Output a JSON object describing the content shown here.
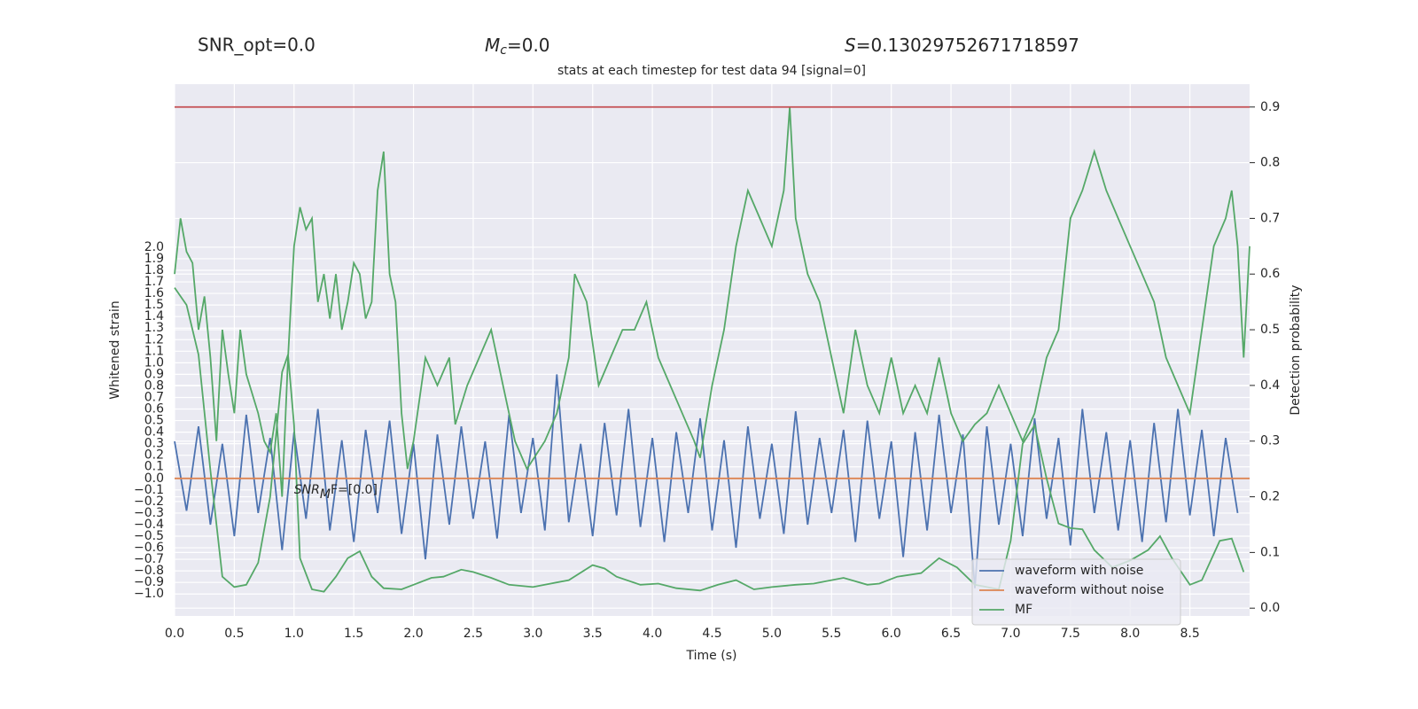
{
  "chart_data": {
    "type": "line",
    "title": "stats at each timestep for test data 94 [signal=0]",
    "snr_opt_label": "SNR_opt=0.0",
    "mc_label": {
      "symbol": "M",
      "sub": "c",
      "rest": "=0.0"
    },
    "s_label": {
      "symbol": "S",
      "rest": "=0.13029752671718597"
    },
    "annotation": {
      "symbol": "SNR",
      "sub": "M",
      "rest": "F=[0.0]",
      "x": 1.0,
      "y": -0.1
    },
    "xlabel": "Time (s)",
    "ylabel": "Whitened strain",
    "y2label": "Detection probability",
    "xlim": [
      0,
      9.0
    ],
    "ylim": [
      -1.19,
      3.41
    ],
    "y2lim": [
      -0.014,
      0.941
    ],
    "xticks": [
      {
        "value": 0,
        "label": "0.0"
      },
      0.5,
      {
        "value": 1,
        "label": "1.0"
      },
      1.5,
      {
        "value": 2,
        "label": "2.0"
      },
      2.5,
      {
        "value": 3,
        "label": "3.0"
      },
      3.5,
      {
        "value": 4,
        "label": "4.0"
      },
      4.5,
      {
        "value": 5,
        "label": "5.0"
      },
      5.5,
      {
        "value": 6,
        "label": "6.0"
      },
      6.5,
      {
        "value": 7,
        "label": "7.0"
      },
      7.5,
      {
        "value": 8,
        "label": "8.0"
      },
      8.5
    ],
    "yticks": [
      {
        "value": -1.0,
        "label": "−1.0"
      },
      {
        "value": -0.9,
        "label": "−0.9"
      },
      {
        "value": -0.8,
        "label": "−0.8"
      },
      {
        "value": -0.7,
        "label": "−0.7"
      },
      {
        "value": -0.6,
        "label": "−0.6"
      },
      {
        "value": -0.5,
        "label": "−0.5"
      },
      {
        "value": -0.4,
        "label": "−0.4"
      },
      {
        "value": -0.3,
        "label": "−0.3"
      },
      {
        "value": -0.2,
        "label": "−0.2"
      },
      {
        "value": -0.1,
        "label": "−0.1"
      },
      {
        "value": 0,
        "label": "0.0"
      },
      0.1,
      0.2,
      0.3,
      0.4,
      0.5,
      0.6,
      0.7,
      0.8,
      0.9,
      {
        "value": 1,
        "label": "1.0"
      },
      1.1,
      1.2,
      1.3,
      1.4,
      1.5,
      1.6,
      1.7,
      1.8,
      1.9,
      {
        "value": 2,
        "label": "2.0"
      }
    ],
    "y2ticks": [
      {
        "value": 0,
        "label": "0.0"
      },
      0.1,
      0.2,
      0.3,
      0.4,
      0.5,
      0.6,
      0.7,
      0.8,
      0.9
    ],
    "grid": true,
    "legend": "lower right",
    "hlines": [
      {
        "value": 0.9,
        "axis": "y2",
        "color": "#c44e52"
      }
    ],
    "series": [
      {
        "name": "waveform with noise",
        "color": "#4c72b0",
        "x": [
          0,
          0.1,
          0.2,
          0.3,
          0.4,
          0.5,
          0.6,
          0.7,
          0.8,
          0.9,
          1,
          1.1,
          1.2,
          1.3,
          1.4,
          1.5,
          1.6,
          1.7,
          1.8,
          1.9,
          2,
          2.1,
          2.2,
          2.3,
          2.4,
          2.5,
          2.6,
          2.7,
          2.8,
          2.9,
          3,
          3.1,
          3.2,
          3.3,
          3.4,
          3.5,
          3.6,
          3.7,
          3.8,
          3.9,
          4,
          4.1,
          4.2,
          4.3,
          4.4,
          4.5,
          4.6,
          4.7,
          4.8,
          4.9,
          5,
          5.1,
          5.2,
          5.3,
          5.4,
          5.5,
          5.6,
          5.7,
          5.8,
          5.9,
          6,
          6.1,
          6.2,
          6.3,
          6.4,
          6.5,
          6.6,
          6.7,
          6.8,
          6.9,
          7,
          7.1,
          7.2,
          7.3,
          7.4,
          7.5,
          7.6,
          7.7,
          7.8,
          7.9,
          8,
          8.1,
          8.2,
          8.3,
          8.4,
          8.5,
          8.6,
          8.7,
          8.8,
          8.9
        ],
        "values": [
          0.32,
          -0.28,
          0.45,
          -0.4,
          0.3,
          -0.5,
          0.55,
          -0.3,
          0.35,
          -0.62,
          0.4,
          -0.35,
          0.6,
          -0.45,
          0.33,
          -0.55,
          0.42,
          -0.3,
          0.5,
          -0.48,
          0.3,
          -0.7,
          0.38,
          -0.4,
          0.45,
          -0.35,
          0.32,
          -0.52,
          0.55,
          -0.3,
          0.35,
          -0.45,
          0.9,
          -0.38,
          0.3,
          -0.5,
          0.48,
          -0.32,
          0.6,
          -0.42,
          0.35,
          -0.55,
          0.4,
          -0.3,
          0.52,
          -0.45,
          0.33,
          -0.6,
          0.45,
          -0.35,
          0.3,
          -0.48,
          0.58,
          -0.4,
          0.35,
          -0.3,
          0.42,
          -0.55,
          0.5,
          -0.35,
          0.32,
          -0.68,
          0.4,
          -0.45,
          0.55,
          -0.3,
          0.38,
          -0.95,
          0.45,
          -0.4,
          0.3,
          -0.5,
          0.52,
          -0.35,
          0.35,
          -0.58,
          0.6,
          -0.3,
          0.4,
          -0.45,
          0.33,
          -0.55,
          0.48,
          -0.38,
          0.6,
          -0.32,
          0.42,
          -0.5,
          0.35,
          -0.3
        ]
      },
      {
        "name": "waveform without noise",
        "color": "#dd8452",
        "x": [
          0,
          9.0
        ],
        "values": [
          0,
          0
        ]
      },
      {
        "name": "MF",
        "color": "#55a868",
        "x": [
          0,
          0.1,
          0.2,
          0.3,
          0.4,
          0.5,
          0.6,
          0.7,
          0.8,
          0.9,
          0.95,
          1.0,
          1.05,
          1.15,
          1.25,
          1.35,
          1.45,
          1.55,
          1.65,
          1.75,
          1.9,
          2.0,
          2.15,
          2.25,
          2.4,
          2.5,
          2.65,
          2.8,
          3.0,
          3.1,
          3.3,
          3.5,
          3.6,
          3.7,
          3.9,
          4.05,
          4.2,
          4.4,
          4.55,
          4.7,
          4.85,
          5.0,
          5.2,
          5.35,
          5.6,
          5.8,
          5.9,
          6.05,
          6.25,
          6.4,
          6.55,
          6.7,
          6.9,
          7.0,
          7.1,
          7.2,
          7.3,
          7.4,
          7.5,
          7.6,
          7.7,
          7.85,
          8.0,
          8.15,
          8.25,
          8.35,
          8.5,
          8.6,
          8.75,
          8.85,
          8.95
        ],
        "values": [
          1.65,
          1.5,
          1.07,
          0.07,
          -0.85,
          -0.94,
          -0.92,
          -0.73,
          -0.16,
          0.92,
          1.07,
          0.46,
          -0.69,
          -0.96,
          -0.98,
          -0.85,
          -0.69,
          -0.63,
          -0.85,
          -0.95,
          -0.96,
          -0.92,
          -0.86,
          -0.85,
          -0.79,
          -0.81,
          -0.86,
          -0.92,
          -0.94,
          -0.92,
          -0.88,
          -0.75,
          -0.78,
          -0.85,
          -0.92,
          -0.91,
          -0.95,
          -0.97,
          -0.92,
          -0.88,
          -0.96,
          -0.94,
          -0.92,
          -0.91,
          -0.86,
          -0.92,
          -0.91,
          -0.85,
          -0.82,
          -0.69,
          -0.77,
          -0.92,
          -0.96,
          -0.54,
          0.3,
          0.46,
          0.0,
          -0.39,
          -0.43,
          -0.44,
          -0.62,
          -0.77,
          -0.71,
          -0.62,
          -0.5,
          -0.69,
          -0.92,
          -0.88,
          -0.54,
          -0.52,
          -0.81
        ]
      },
      {
        "color": "#55a868",
        "axis": "y2",
        "x": [
          0,
          0.05,
          0.1,
          0.15,
          0.2,
          0.25,
          0.3,
          0.35,
          0.4,
          0.45,
          0.5,
          0.55,
          0.6,
          0.7,
          0.75,
          0.8,
          0.85,
          0.9,
          0.95,
          1.0,
          1.05,
          1.1,
          1.15,
          1.2,
          1.25,
          1.3,
          1.35,
          1.4,
          1.45,
          1.5,
          1.55,
          1.6,
          1.65,
          1.7,
          1.75,
          1.8,
          1.85,
          1.9,
          1.95,
          2.0,
          2.1,
          2.2,
          2.3,
          2.35,
          2.45,
          2.55,
          2.65,
          2.75,
          2.85,
          2.95,
          3.1,
          3.2,
          3.3,
          3.35,
          3.45,
          3.55,
          3.65,
          3.75,
          3.85,
          3.95,
          4.05,
          4.15,
          4.25,
          4.35,
          4.4,
          4.5,
          4.6,
          4.7,
          4.8,
          4.9,
          5.0,
          5.1,
          5.15,
          5.2,
          5.3,
          5.4,
          5.5,
          5.6,
          5.7,
          5.8,
          5.9,
          6.0,
          6.1,
          6.2,
          6.3,
          6.4,
          6.5,
          6.6,
          6.7,
          6.8,
          6.9,
          7.0,
          7.1,
          7.2,
          7.3,
          7.4,
          7.5,
          7.6,
          7.7,
          7.8,
          7.9,
          8.0,
          8.1,
          8.2,
          8.3,
          8.4,
          8.5,
          8.6,
          8.7,
          8.8,
          8.85,
          8.9,
          8.95,
          9.0
        ],
        "values": [
          0.6,
          0.7,
          0.64,
          0.62,
          0.5,
          0.56,
          0.45,
          0.3,
          0.5,
          0.42,
          0.35,
          0.5,
          0.42,
          0.35,
          0.3,
          0.28,
          0.35,
          0.2,
          0.45,
          0.65,
          0.72,
          0.68,
          0.7,
          0.55,
          0.6,
          0.52,
          0.6,
          0.5,
          0.55,
          0.62,
          0.6,
          0.52,
          0.55,
          0.75,
          0.82,
          0.6,
          0.55,
          0.35,
          0.25,
          0.3,
          0.45,
          0.4,
          0.45,
          0.33,
          0.4,
          0.45,
          0.5,
          0.4,
          0.3,
          0.25,
          0.3,
          0.35,
          0.45,
          0.6,
          0.55,
          0.4,
          0.45,
          0.5,
          0.5,
          0.55,
          0.45,
          0.4,
          0.35,
          0.3,
          0.27,
          0.4,
          0.5,
          0.65,
          0.75,
          0.7,
          0.65,
          0.75,
          0.9,
          0.7,
          0.6,
          0.55,
          0.45,
          0.35,
          0.5,
          0.4,
          0.35,
          0.45,
          0.35,
          0.4,
          0.35,
          0.45,
          0.35,
          0.3,
          0.33,
          0.35,
          0.4,
          0.35,
          0.3,
          0.35,
          0.45,
          0.5,
          0.7,
          0.75,
          0.82,
          0.75,
          0.7,
          0.65,
          0.6,
          0.55,
          0.45,
          0.4,
          0.35,
          0.5,
          0.65,
          0.7,
          0.75,
          0.65,
          0.45,
          0.65
        ]
      }
    ]
  }
}
